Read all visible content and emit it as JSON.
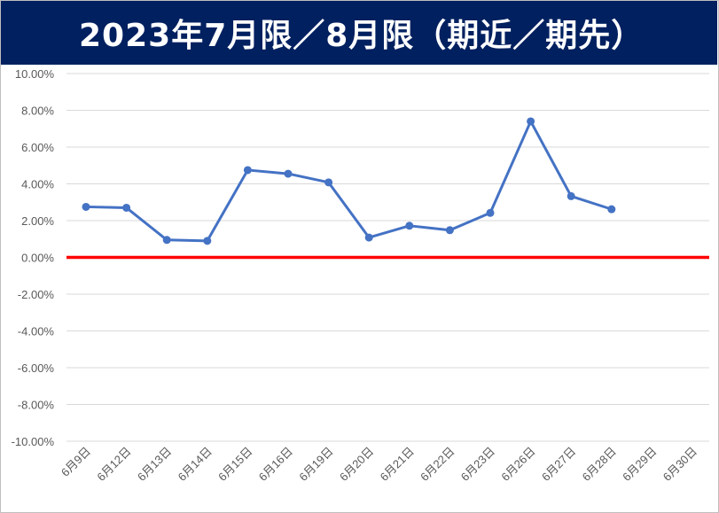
{
  "title": "2023年7月限／8月限（期近／期先）",
  "chart_data": {
    "type": "line",
    "title": "2023年7月限／8月限（期近／期先）",
    "xlabel": "",
    "ylabel": "",
    "ylim": [
      -0.1,
      0.1
    ],
    "y_tick_step": 0.02,
    "y_tick_labels": [
      "10.00%",
      "8.00%",
      "6.00%",
      "4.00%",
      "2.00%",
      "0.00%",
      "-2.00%",
      "-4.00%",
      "-6.00%",
      "-8.00%",
      "-10.00%"
    ],
    "categories": [
      "6月9日",
      "6月12日",
      "6月13日",
      "6月14日",
      "6月15日",
      "6月16日",
      "6月19日",
      "6月20日",
      "6月21日",
      "6月22日",
      "6月23日",
      "6月26日",
      "6月27日",
      "6月28日",
      "6月29日",
      "6月30日"
    ],
    "series": [
      {
        "values": [
          0.0275,
          0.027,
          0.0095,
          0.009,
          0.0475,
          0.0455,
          0.0408,
          0.0108,
          0.0172,
          0.0148,
          0.0242,
          0.074,
          0.0333,
          0.0262,
          null,
          null
        ],
        "color": "#4472C4",
        "marker": "circle"
      }
    ],
    "reference_line": {
      "y": 0,
      "color": "#FF0000"
    },
    "grid": true,
    "gridline_color": "#d9d9d9"
  }
}
